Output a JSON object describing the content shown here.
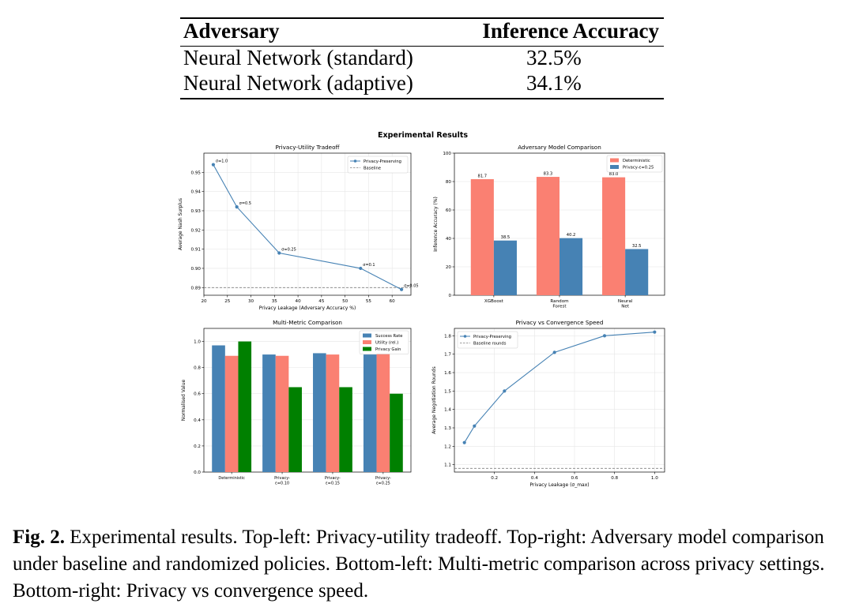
{
  "table": {
    "headers": [
      "Adversary",
      "Inference Accuracy"
    ],
    "rows": [
      [
        "Neural Network (standard)",
        "32.5%"
      ],
      [
        "Neural Network (adaptive)",
        "34.1%"
      ]
    ]
  },
  "figure": {
    "suptitle": "Experimental Results"
  },
  "caption": {
    "label": "Fig. 2.",
    "text": "Experimental results. Top-left: Privacy-utility tradeoff. Top-right: Adversary model comparison under baseline and randomized policies. Bottom-left: Multi-metric comparison across privacy settings. Bottom-right: Privacy vs convergence speed."
  },
  "chart_data": [
    {
      "type": "line",
      "title": "Privacy-Utility Tradeoff",
      "xlabel": "Privacy Leakage (Adversary Accuracy %)",
      "ylabel": "Average Nash Surplus",
      "xlim": [
        20,
        64
      ],
      "ylim": [
        0.886,
        0.96
      ],
      "xticks": [
        20,
        25,
        30,
        35,
        40,
        45,
        50,
        55,
        60
      ],
      "yticks": [
        0.89,
        0.9,
        0.91,
        0.92,
        0.93,
        0.94,
        0.95
      ],
      "series": [
        {
          "name": "Privacy-Preserving",
          "color": "#4682b4",
          "x": [
            22.0,
            27.0,
            36.0,
            53.3,
            62.0
          ],
          "y": [
            0.954,
            0.932,
            0.908,
            0.9,
            0.889
          ],
          "point_labels": [
            "σ=1.0",
            "σ=0.5",
            "σ=0.25",
            "σ=0.1",
            "σ=0.05"
          ]
        }
      ],
      "baseline": {
        "name": "Baseline",
        "y": 0.89,
        "color": "#808080"
      },
      "grid": true,
      "legend": "top-right"
    },
    {
      "type": "bar",
      "title": "Adversary Model Comparison",
      "ylabel": "Inference Accuracy (%)",
      "ylim": [
        0,
        100
      ],
      "yticks": [
        0,
        20,
        40,
        60,
        80,
        100
      ],
      "categories": [
        [
          "XGBoost"
        ],
        [
          "Random",
          "Forest"
        ],
        [
          "Neural",
          "Net"
        ]
      ],
      "series": [
        {
          "name": "Deterministic",
          "color": "#fa8072",
          "values": [
            81.7,
            83.3,
            83.0
          ],
          "labels": [
            "81.7",
            "83.3",
            "83.0"
          ]
        },
        {
          "name": "Privacy-ε=0.25",
          "color": "#4682b4",
          "values": [
            38.5,
            40.2,
            32.5
          ],
          "labels": [
            "38.5",
            "40.2",
            "32.5"
          ]
        }
      ],
      "grid": true,
      "legend": "top-right"
    },
    {
      "type": "bar",
      "title": "Multi-Metric Comparison",
      "ylabel": "Normalised Value",
      "ylim": [
        0,
        1.1
      ],
      "yticks": [
        0.0,
        0.2,
        0.4,
        0.6,
        0.8,
        1.0
      ],
      "categories": [
        [
          "Deterministic"
        ],
        [
          "Privacy-",
          "ε=0.10"
        ],
        [
          "Privacy-",
          "ε=0.15"
        ],
        [
          "Privacy-",
          "ε=0.25"
        ]
      ],
      "series": [
        {
          "name": "Success Rate",
          "color": "#4682b4",
          "values": [
            0.97,
            0.9,
            0.91,
            0.9
          ]
        },
        {
          "name": "Utility (rel.)",
          "color": "#fa8072",
          "values": [
            0.89,
            0.89,
            0.9,
            0.91
          ]
        },
        {
          "name": "Privacy Gain",
          "color": "#008000",
          "values": [
            1.0,
            0.65,
            0.65,
            0.6
          ]
        }
      ],
      "grid": true,
      "legend": "top-right"
    },
    {
      "type": "line",
      "title": "Privacy vs Convergence Speed",
      "xlabel": "Privacy Leakage (σ_max)",
      "ylabel": "Average Negotiation Rounds",
      "xlim": [
        0.0,
        1.05
      ],
      "ylim": [
        1.06,
        1.84
      ],
      "xticks": [
        0.2,
        0.4,
        0.6,
        0.8,
        1.0
      ],
      "yticks": [
        1.1,
        1.2,
        1.3,
        1.4,
        1.5,
        1.6,
        1.7,
        1.8
      ],
      "series": [
        {
          "name": "Privacy-Preserving",
          "color": "#4682b4",
          "x": [
            0.05,
            0.1,
            0.25,
            0.5,
            0.75,
            1.0
          ],
          "y": [
            1.22,
            1.31,
            1.5,
            1.71,
            1.8,
            1.82
          ]
        }
      ],
      "baseline": {
        "name": "Baseline rounds",
        "y": 1.08,
        "color": "#808080"
      },
      "grid": true,
      "legend": "top-left"
    }
  ]
}
